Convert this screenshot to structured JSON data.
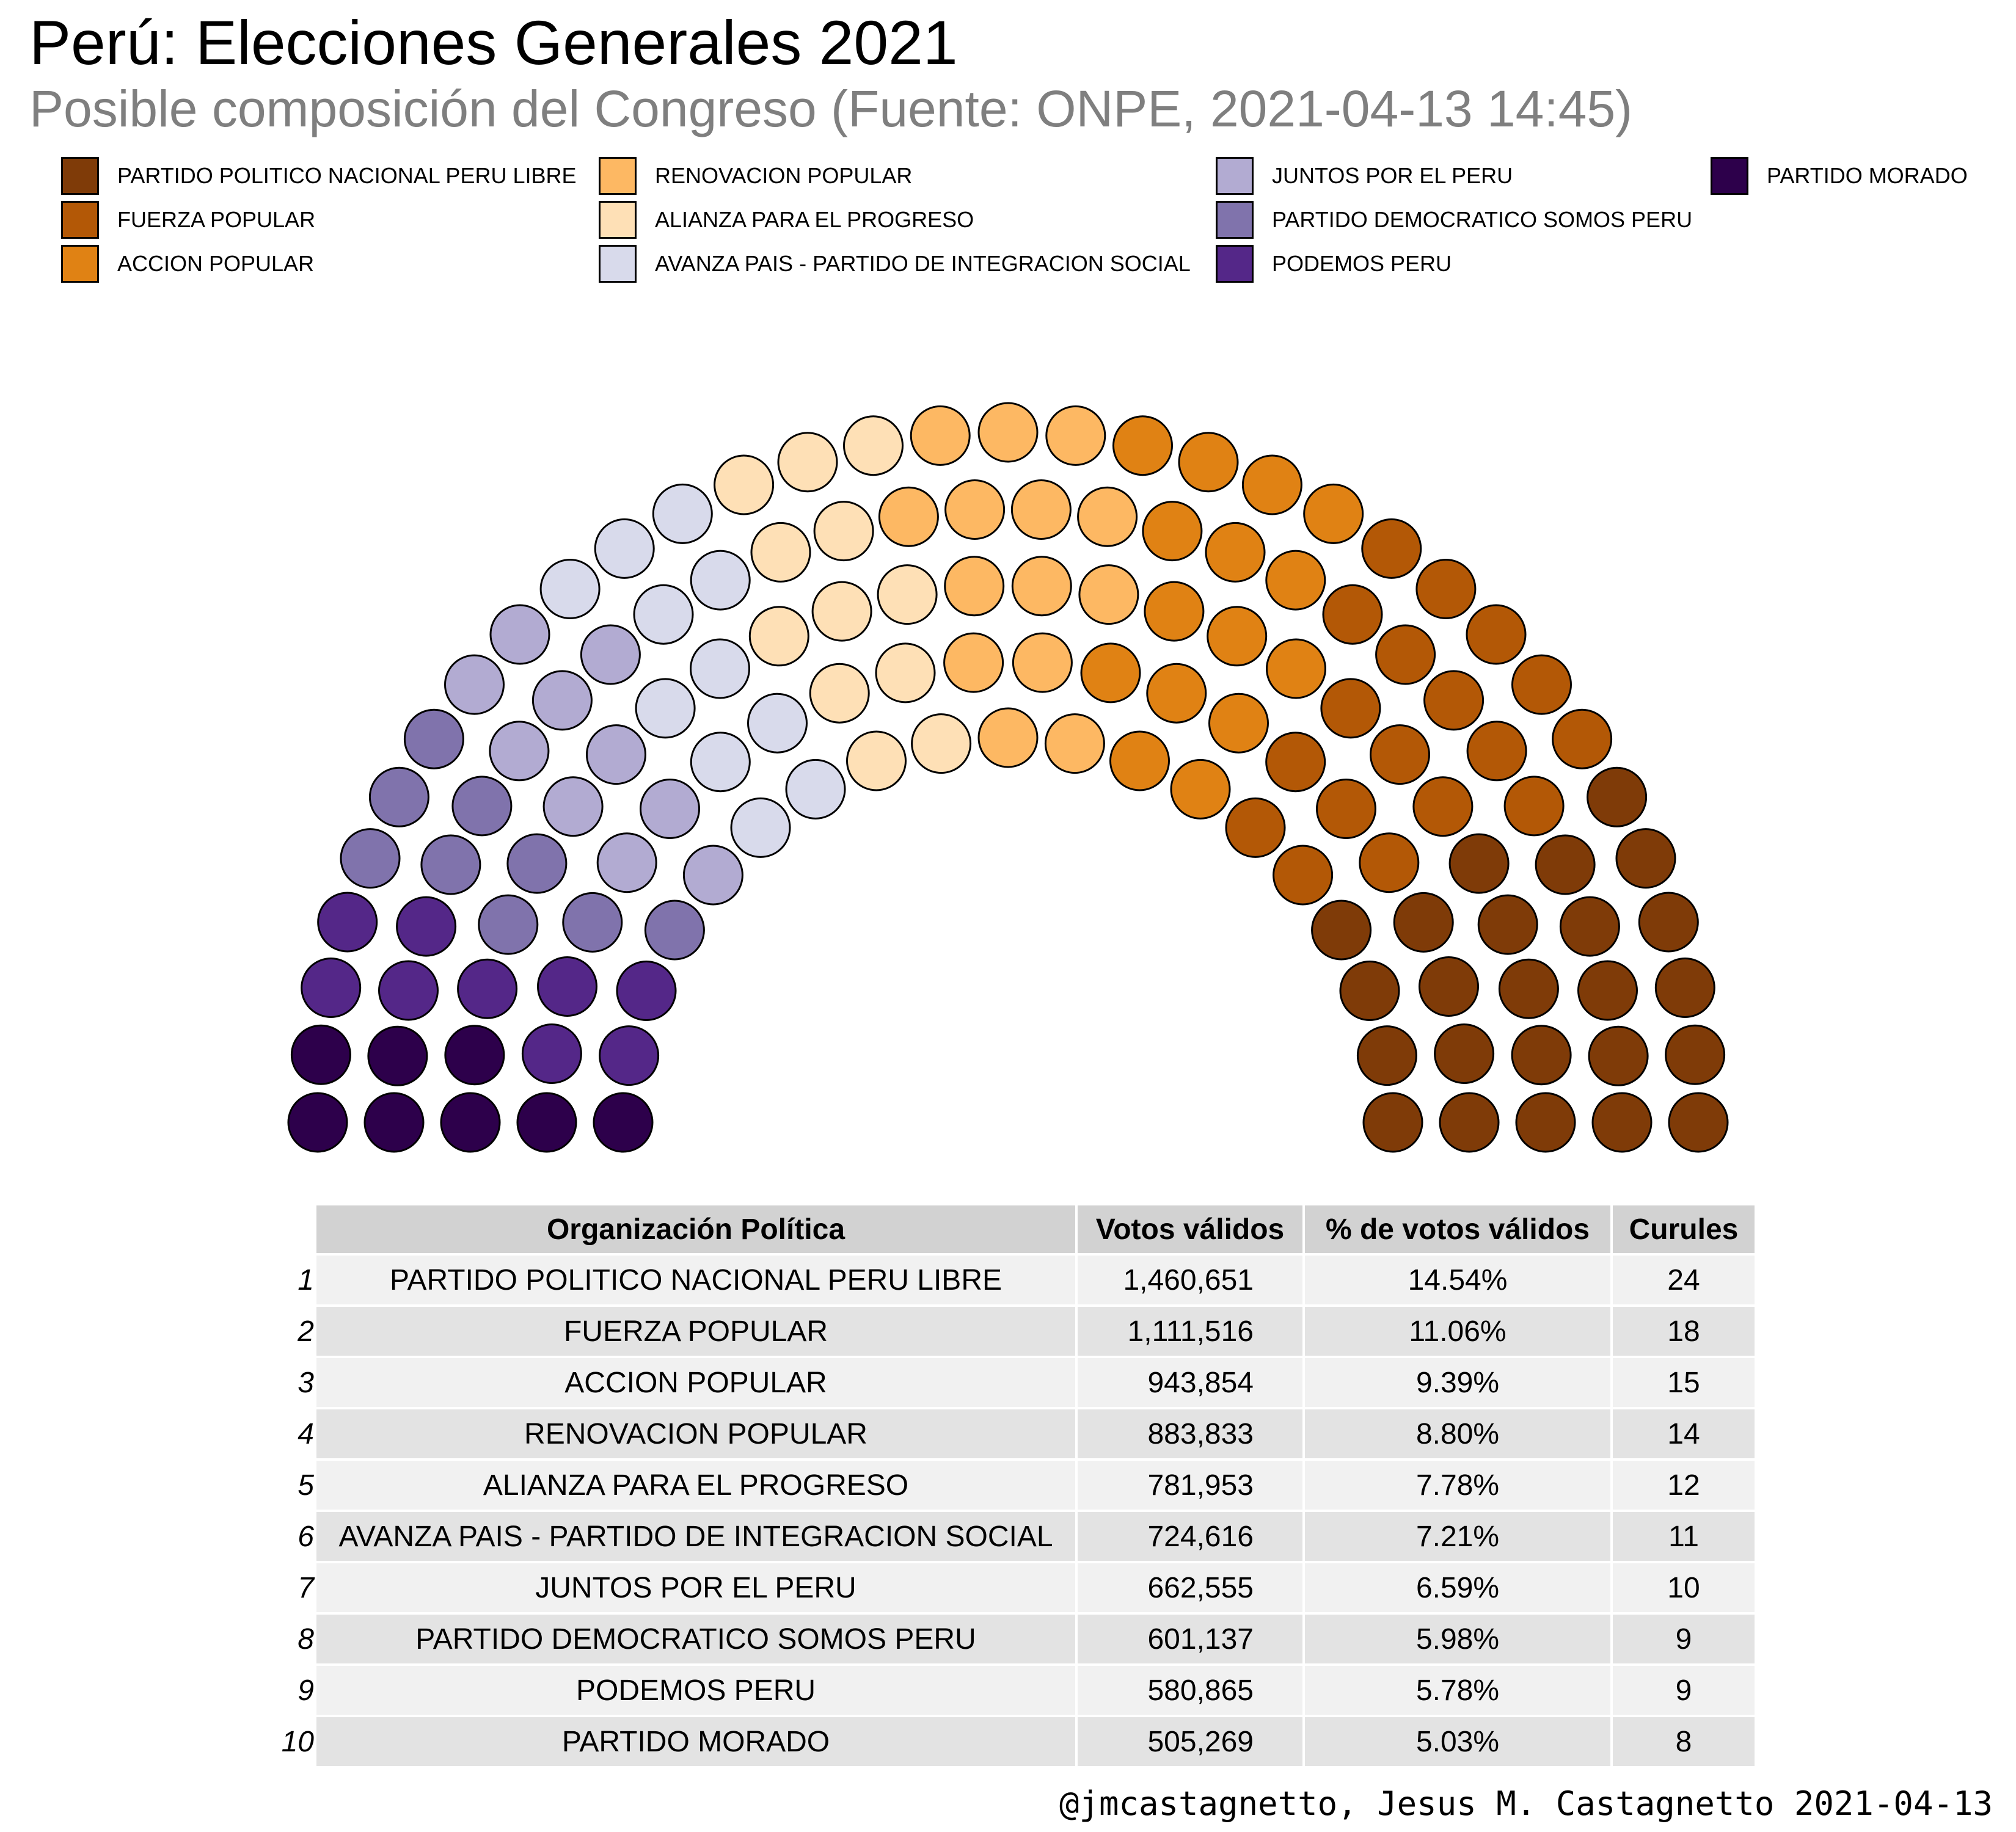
{
  "title": "Perú: Elecciones Generales 2021",
  "subtitle": "Posible composición del Congreso (Fuente: ONPE, 2021-04-13 14:45)",
  "credit": "@jmcastagnetto, Jesus M. Castagnetto 2021-04-13",
  "chart_data": {
    "type": "parliament",
    "total_seats": 130,
    "parties": [
      {
        "name": "PARTIDO POLITICO NACIONAL PERU LIBRE",
        "seats": 24,
        "color": "#7f3b08"
      },
      {
        "name": "FUERZA POPULAR",
        "seats": 18,
        "color": "#b35806"
      },
      {
        "name": "ACCION POPULAR",
        "seats": 15,
        "color": "#e08214"
      },
      {
        "name": "RENOVACION POPULAR",
        "seats": 14,
        "color": "#fdb863"
      },
      {
        "name": "ALIANZA PARA EL PROGRESO",
        "seats": 12,
        "color": "#fee0b6"
      },
      {
        "name": "AVANZA PAIS - PARTIDO DE INTEGRACION SOCIAL",
        "seats": 11,
        "color": "#d8daeb"
      },
      {
        "name": "JUNTOS POR EL PERU",
        "seats": 10,
        "color": "#b2abd2"
      },
      {
        "name": "PARTIDO DEMOCRATICO SOMOS PERU",
        "seats": 9,
        "color": "#8073ac"
      },
      {
        "name": "PODEMOS PERU",
        "seats": 9,
        "color": "#542788"
      },
      {
        "name": "PARTIDO MORADO",
        "seats": 8,
        "color": "#2d004b"
      }
    ],
    "legend_position": "top"
  },
  "table": {
    "headers": [
      "Organización Política",
      "Votos válidos",
      "% de votos válidos",
      "Curules"
    ],
    "rows": [
      {
        "idx": "1",
        "party": "PARTIDO POLITICO NACIONAL PERU LIBRE",
        "votes": "1,460,651",
        "pct": "14.54%",
        "seats": "24"
      },
      {
        "idx": "2",
        "party": "FUERZA POPULAR",
        "votes": "1,111,516",
        "pct": "11.06%",
        "seats": "18"
      },
      {
        "idx": "3",
        "party": "ACCION POPULAR",
        "votes": "943,854",
        "pct": "9.39%",
        "seats": "15"
      },
      {
        "idx": "4",
        "party": "RENOVACION POPULAR",
        "votes": "883,833",
        "pct": "8.80%",
        "seats": "14"
      },
      {
        "idx": "5",
        "party": "ALIANZA PARA EL PROGRESO",
        "votes": "781,953",
        "pct": "7.78%",
        "seats": "12"
      },
      {
        "idx": "6",
        "party": "AVANZA PAIS - PARTIDO DE INTEGRACION SOCIAL",
        "votes": "724,616",
        "pct": "7.21%",
        "seats": "11"
      },
      {
        "idx": "7",
        "party": "JUNTOS POR EL PERU",
        "votes": "662,555",
        "pct": "6.59%",
        "seats": "10"
      },
      {
        "idx": "8",
        "party": "PARTIDO DEMOCRATICO SOMOS PERU",
        "votes": "601,137",
        "pct": "5.98%",
        "seats": "9"
      },
      {
        "idx": "9",
        "party": "PODEMOS PERU",
        "votes": "580,865",
        "pct": "5.78%",
        "seats": "9"
      },
      {
        "idx": "10",
        "party": "PARTIDO MORADO",
        "votes": "505,269",
        "pct": "5.03%",
        "seats": "8"
      }
    ]
  }
}
